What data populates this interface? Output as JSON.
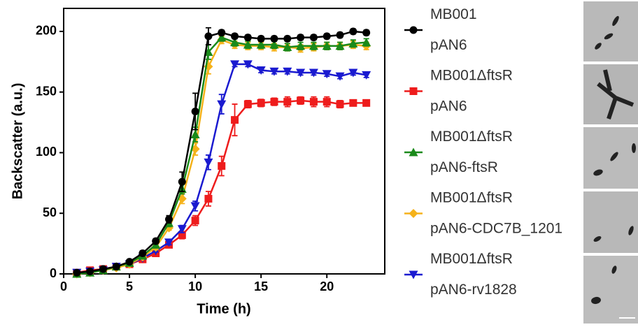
{
  "chart_data": {
    "type": "line",
    "xlabel": "Time (h)",
    "ylabel": "Backscatter (a.u.)",
    "xlim": [
      0,
      24.4
    ],
    "xticks": [
      0,
      5,
      10,
      15,
      20
    ],
    "ylim": [
      0,
      219
    ],
    "yticks": [
      0,
      50,
      100,
      150,
      200
    ],
    "x": [
      1,
      2,
      3,
      4,
      5,
      6,
      7,
      8,
      9,
      10,
      11,
      12,
      13,
      14,
      15,
      16,
      17,
      18,
      19,
      20,
      21,
      22,
      23
    ],
    "series": [
      {
        "name": "MB001\npAN6",
        "color": "#000000",
        "marker": "circle",
        "values": [
          1,
          2,
          4,
          6,
          10,
          17,
          27,
          45,
          76,
          134,
          196,
          199,
          196,
          195,
          194,
          194,
          194,
          195,
          195,
          196,
          197,
          200,
          199
        ],
        "errors": [
          1,
          1,
          1,
          1,
          1,
          2,
          2,
          3,
          8,
          15,
          7,
          2,
          2,
          2,
          2,
          2,
          2,
          2,
          2,
          2,
          2,
          2,
          2
        ]
      },
      {
        "name": "MB001ΔftsR\npAN6",
        "color": "#ee1c1c",
        "marker": "square",
        "values": [
          1,
          3,
          4,
          6,
          8,
          12,
          17,
          24,
          32,
          44,
          62,
          89,
          127,
          140,
          141,
          142,
          142,
          143,
          142,
          142,
          140,
          141,
          141
        ],
        "errors": [
          1,
          1,
          1,
          1,
          1,
          1,
          2,
          2,
          3,
          4,
          6,
          8,
          13,
          3,
          3,
          3,
          4,
          3,
          4,
          4,
          3,
          2,
          2
        ]
      },
      {
        "name": "MB001ΔftsR\npAN6-ftsR",
        "color": "#1a8a1a",
        "marker": "triangle-up",
        "values": [
          0,
          1,
          3,
          6,
          9,
          15,
          24,
          42,
          70,
          115,
          183,
          195,
          191,
          189,
          189,
          189,
          187,
          188,
          188,
          188,
          188,
          190,
          191
        ],
        "errors": [
          1,
          1,
          1,
          1,
          1,
          1,
          2,
          3,
          4,
          6,
          6,
          3,
          3,
          3,
          3,
          3,
          3,
          3,
          3,
          3,
          3,
          3,
          3
        ]
      },
      {
        "name": "MB001ΔftsR\npAN6-CDC7B_1201",
        "color": "#f5b21a",
        "marker": "diamond",
        "values": [
          0,
          1,
          3,
          5,
          8,
          14,
          22,
          38,
          62,
          103,
          171,
          193,
          189,
          188,
          188,
          187,
          187,
          186,
          187,
          188,
          188,
          189,
          188
        ],
        "errors": [
          1,
          1,
          1,
          1,
          1,
          1,
          2,
          2,
          4,
          5,
          6,
          3,
          3,
          3,
          3,
          3,
          3,
          3,
          3,
          3,
          3,
          3,
          3
        ]
      },
      {
        "name": "MB001ΔftsR\npAN6-rv1828",
        "color": "#1a1ad0",
        "marker": "triangle-down",
        "values": [
          1,
          2,
          3,
          6,
          8,
          13,
          19,
          26,
          37,
          56,
          92,
          140,
          173,
          173,
          168,
          167,
          167,
          166,
          166,
          165,
          163,
          166,
          164
        ],
        "errors": [
          1,
          1,
          1,
          1,
          1,
          1,
          1,
          2,
          3,
          4,
          6,
          8,
          2,
          2,
          2,
          2,
          2,
          2,
          2,
          2,
          2,
          2,
          2
        ]
      }
    ]
  }
}
